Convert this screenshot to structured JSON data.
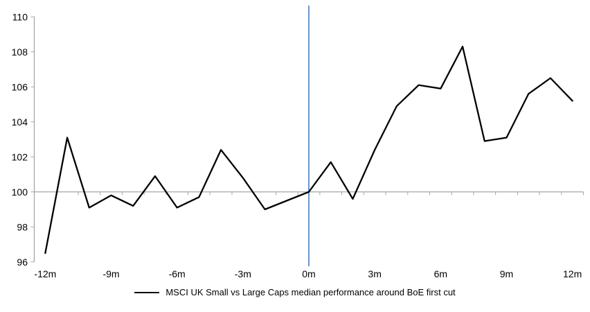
{
  "chart_data": {
    "type": "line",
    "title": "",
    "xlabel": "",
    "ylabel": "",
    "x": [
      -12,
      -11,
      -10,
      -9,
      -8,
      -7,
      -6,
      -5,
      -4,
      -3,
      -2,
      -1,
      0,
      1,
      2,
      3,
      4,
      5,
      6,
      7,
      8,
      9,
      10,
      11,
      12
    ],
    "series": [
      {
        "name": "MSCI UK Small vs Large Caps median performance around BoE first cut",
        "color": "#000000",
        "values": [
          96.5,
          103.1,
          99.1,
          99.8,
          99.2,
          100.9,
          99.1,
          99.7,
          102.4,
          100.8,
          99.0,
          99.5,
          100.0,
          101.7,
          99.6,
          102.4,
          104.9,
          106.1,
          105.9,
          108.3,
          102.9,
          103.1,
          105.6,
          106.5,
          105.2
        ]
      }
    ],
    "ylim": [
      96,
      110
    ],
    "y_ticks": [
      96,
      98,
      100,
      102,
      104,
      106,
      108,
      110
    ],
    "x_tick_labels": [
      {
        "label": "-12m",
        "x": -12
      },
      {
        "label": "-9m",
        "x": -9
      },
      {
        "label": "-6m",
        "x": -6
      },
      {
        "label": "-3m",
        "x": -3
      },
      {
        "label": "0m",
        "x": 0
      },
      {
        "label": "3m",
        "x": 3
      },
      {
        "label": "6m",
        "x": 6
      },
      {
        "label": "9m",
        "x": 9
      },
      {
        "label": "12m",
        "x": 12
      }
    ],
    "baseline_y": 100,
    "event_line_x": 0,
    "grid": "off",
    "legend_position": "bottom-center",
    "colors": {
      "series": "#000000",
      "event_line": "#4e86c4",
      "axis": "#a6a6a6",
      "text": "#000000",
      "background": "#ffffff"
    }
  },
  "legend": {
    "items": [
      {
        "label": "MSCI UK Small vs Large Caps median performance around BoE first cut",
        "swatch": "line",
        "color": "#000000"
      }
    ]
  }
}
